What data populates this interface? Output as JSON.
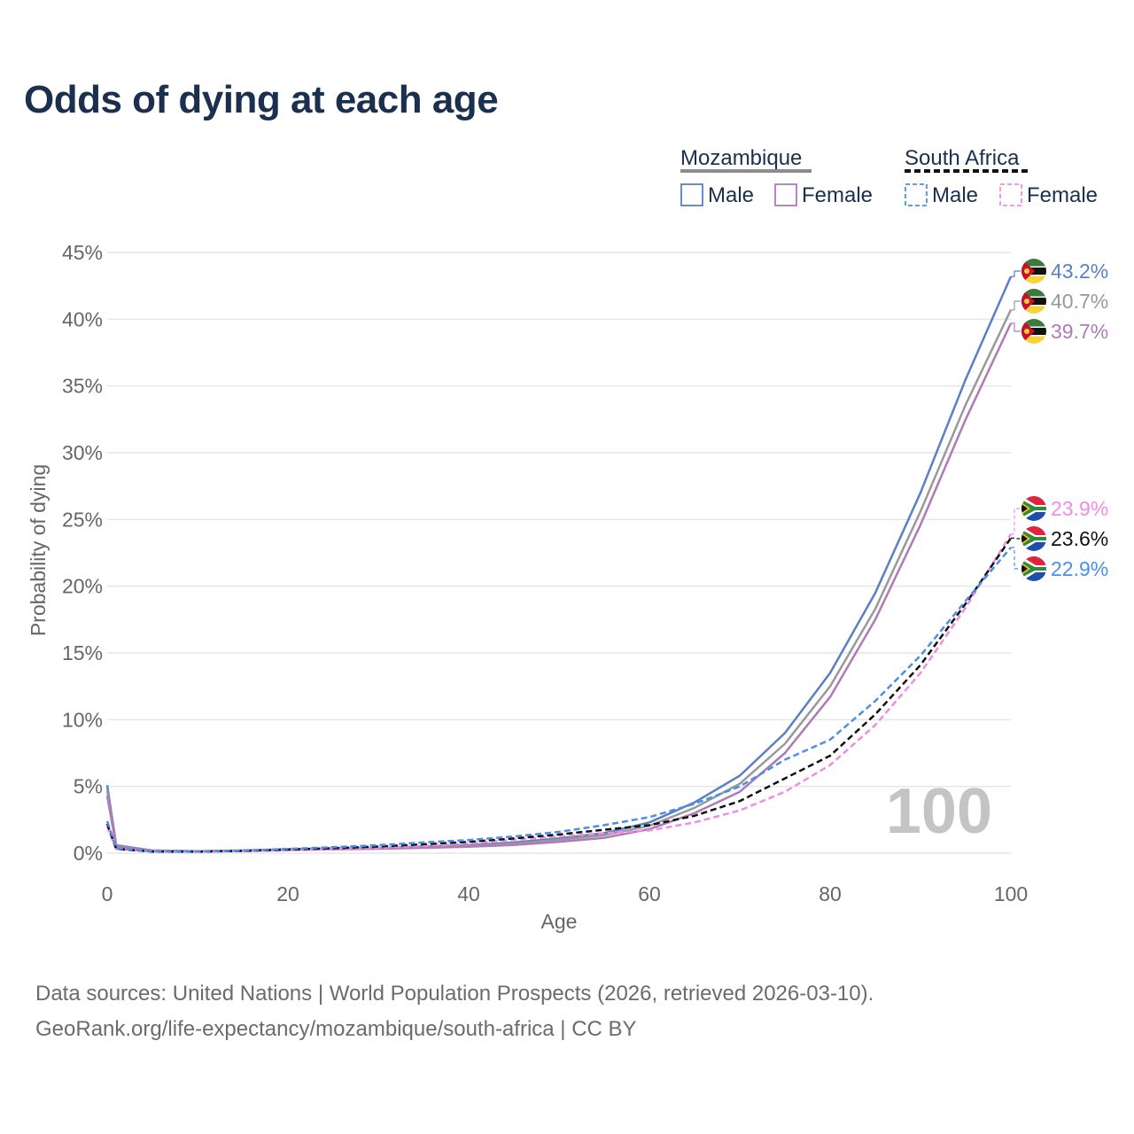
{
  "title": "Odds of dying at each age",
  "legend": {
    "groups": [
      {
        "label": "Mozambique",
        "swatch_color": "#8c8c8c",
        "dashed": false
      },
      {
        "label": "South Africa",
        "swatch_color": "#111111",
        "dashed": true
      }
    ],
    "items": [
      "Male",
      "Female",
      "Male",
      "Female"
    ]
  },
  "colors": {
    "moz_male": "#5b7fc4",
    "moz_female": "#b07ab8",
    "moz_total": "#999999",
    "sa_male": "#4a8fe8",
    "sa_female": "#f08ce8",
    "sa_total": "#111111",
    "title": "#1b2f4e",
    "grid": "#e6e6e6"
  },
  "watermark": "100",
  "footer": {
    "line1": "Data sources: United Nations | World Population Prospects (2026, retrieved 2026-03-10).",
    "line2": "GeoRank.org/life-expectancy/mozambique/south-africa | CC BY"
  },
  "chart_data": {
    "type": "line",
    "xlabel": "Age",
    "ylabel": "Probability of dying",
    "xlim": [
      0,
      100
    ],
    "ylim": [
      0,
      45
    ],
    "xticks": [
      "0",
      "20",
      "40",
      "60",
      "80",
      "100"
    ],
    "yticks": [
      "0%",
      "5%",
      "10%",
      "15%",
      "20%",
      "25%",
      "30%",
      "35%",
      "40%",
      "45%"
    ],
    "x": [
      0,
      1,
      5,
      10,
      15,
      20,
      25,
      30,
      35,
      40,
      45,
      50,
      55,
      60,
      65,
      70,
      75,
      80,
      85,
      90,
      95,
      100
    ],
    "series": [
      {
        "key": "moz_male",
        "name": "Mozambique Male",
        "dashed": false,
        "end_label": "43.2%",
        "values": [
          5.1,
          0.6,
          0.2,
          0.15,
          0.2,
          0.3,
          0.35,
          0.4,
          0.5,
          0.6,
          0.8,
          1.1,
          1.5,
          2.3,
          3.8,
          5.8,
          9.0,
          13.5,
          19.5,
          27.0,
          35.5,
          43.2
        ]
      },
      {
        "key": "moz_total",
        "name": "Mozambique",
        "dashed": false,
        "end_label": "40.7%",
        "values": [
          4.7,
          0.55,
          0.2,
          0.14,
          0.18,
          0.27,
          0.32,
          0.37,
          0.45,
          0.55,
          0.72,
          1.0,
          1.35,
          2.05,
          3.4,
          5.2,
          8.2,
          12.5,
          18.3,
          25.6,
          33.6,
          40.7
        ]
      },
      {
        "key": "moz_female",
        "name": "Mozambique Female",
        "dashed": false,
        "end_label": "39.7%",
        "values": [
          4.3,
          0.5,
          0.2,
          0.13,
          0.16,
          0.24,
          0.28,
          0.33,
          0.4,
          0.48,
          0.62,
          0.85,
          1.15,
          1.8,
          3.0,
          4.6,
          7.5,
          11.7,
          17.5,
          24.6,
          32.5,
          39.7
        ]
      },
      {
        "key": "sa_female",
        "name": "South Africa Female",
        "dashed": true,
        "end_label": "23.9%",
        "values": [
          2.0,
          0.3,
          0.12,
          0.1,
          0.15,
          0.22,
          0.3,
          0.4,
          0.55,
          0.75,
          1.0,
          1.25,
          1.5,
          1.7,
          2.3,
          3.2,
          4.6,
          6.6,
          9.6,
          13.5,
          18.4,
          23.9
        ]
      },
      {
        "key": "sa_total",
        "name": "South Africa",
        "dashed": true,
        "end_label": "23.6%",
        "values": [
          2.2,
          0.32,
          0.12,
          0.11,
          0.17,
          0.27,
          0.37,
          0.5,
          0.67,
          0.85,
          1.1,
          1.4,
          1.75,
          2.1,
          2.8,
          3.9,
          5.6,
          7.3,
          10.4,
          14.1,
          18.7,
          23.6
        ]
      },
      {
        "key": "sa_male",
        "name": "South Africa Male",
        "dashed": true,
        "end_label": "22.9%",
        "values": [
          2.4,
          0.35,
          0.13,
          0.12,
          0.2,
          0.32,
          0.45,
          0.6,
          0.8,
          0.98,
          1.25,
          1.6,
          2.1,
          2.7,
          3.7,
          5.0,
          7.0,
          8.5,
          11.4,
          14.8,
          18.9,
          22.9
        ]
      }
    ]
  }
}
